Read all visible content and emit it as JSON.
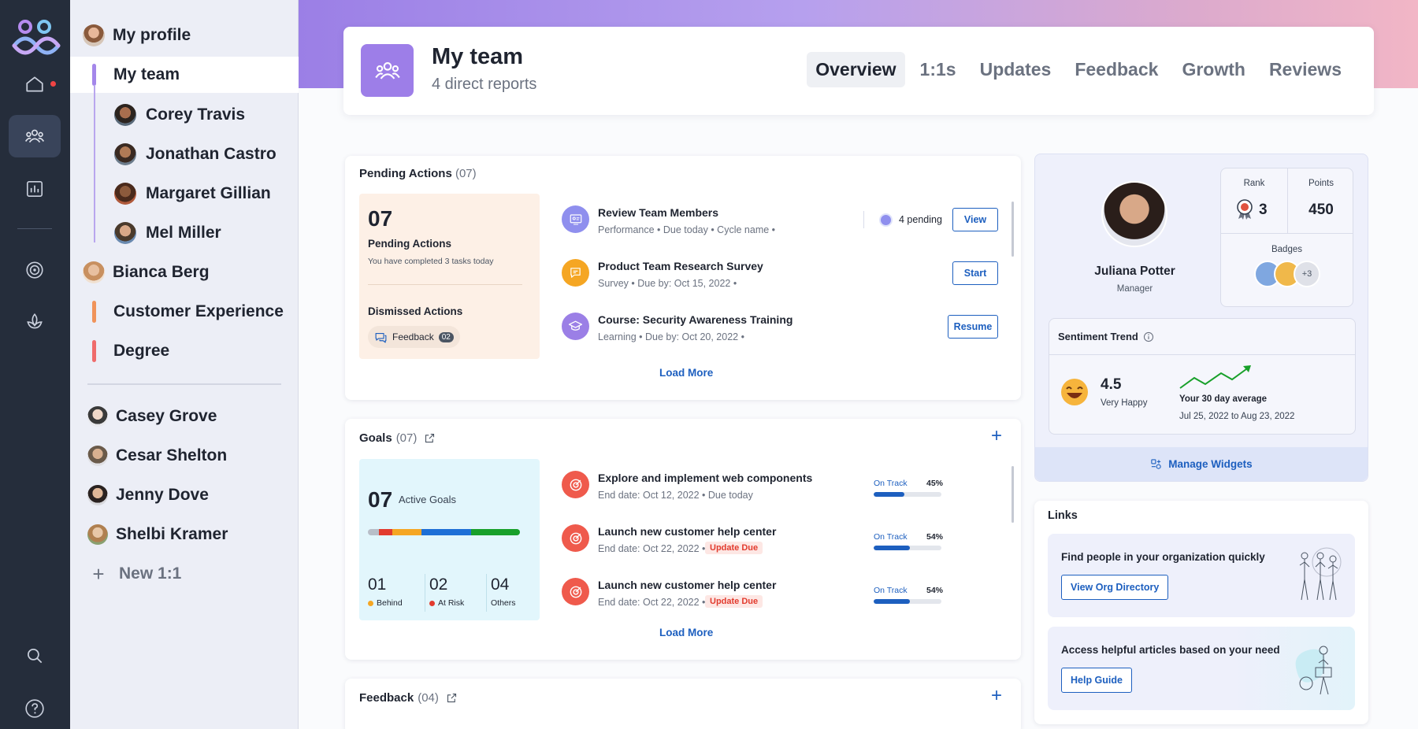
{
  "rail": {
    "icons": [
      "app-logo",
      "home-icon",
      "team-icon",
      "reports-icon",
      "goals-icon",
      "growth-icon",
      "search-icon",
      "help-icon"
    ]
  },
  "nav": {
    "my_profile": "My profile",
    "my_team": "My team",
    "reports": [
      {
        "name": "Corey Travis"
      },
      {
        "name": "Jonathan Castro"
      },
      {
        "name": "Margaret Gillian"
      },
      {
        "name": "Mel Miller"
      }
    ],
    "others": [
      {
        "name": "Bianca Berg",
        "type": "person"
      },
      {
        "name": "Customer Experience",
        "type": "team",
        "color": "#f0935a"
      },
      {
        "name": "Degree",
        "type": "team",
        "color": "#ef6b6b"
      }
    ],
    "one_on_ones": [
      {
        "name": "Casey Grove"
      },
      {
        "name": "Cesar Shelton"
      },
      {
        "name": "Jenny Dove"
      },
      {
        "name": "Shelbi Kramer"
      }
    ],
    "new_one_on_one": "New 1:1"
  },
  "header": {
    "title": "My team",
    "subtitle": "4 direct reports",
    "tabs": [
      {
        "label": "Overview",
        "active": true
      },
      {
        "label": "1:1s",
        "active": false
      },
      {
        "label": "Updates",
        "active": false
      },
      {
        "label": "Feedback",
        "active": false
      },
      {
        "label": "Growth",
        "active": false
      },
      {
        "label": "Reviews",
        "active": false
      }
    ]
  },
  "pending": {
    "title": "Pending Actions",
    "count": "(07)",
    "summary_number": "07",
    "summary_label": "Pending Actions",
    "summary_note": "You have completed 3 tasks today",
    "dismissed_label": "Dismissed Actions",
    "feedback_chip": "Feedback",
    "feedback_count": "02",
    "items": [
      {
        "title": "Review Team Members",
        "meta": "Performance  •  Due today  •  Cycle name  •",
        "pending_text": "4 pending",
        "action": "View",
        "icon_color": "#8f8fee"
      },
      {
        "title": "Product Team Research Survey",
        "meta": "Survey  •  Due by: Oct 15, 2022  •",
        "action": "Start",
        "icon_color": "#f5a623"
      },
      {
        "title": "Course: Security Awareness Training",
        "meta": "Learning  •  Due by: Oct 20, 2022     •",
        "action": "Resume",
        "icon_color": "#9b7fe6"
      }
    ],
    "load_more": "Load More"
  },
  "goals": {
    "title": "Goals",
    "count": "(07)",
    "summary_number": "07",
    "summary_label": "Active Goals",
    "breakdown": [
      {
        "value": "01",
        "label": "Behind",
        "color": "#f5a623"
      },
      {
        "value": "02",
        "label": "At Risk",
        "color": "#e23b2e"
      },
      {
        "value": "04",
        "label": "Others",
        "color": ""
      }
    ],
    "items": [
      {
        "title": "Explore and implement web components",
        "meta": "End date: Oct 12, 2022  •  Due today",
        "status": "On Track",
        "progress": 45,
        "progress_text": "45%",
        "tag": ""
      },
      {
        "title": "Launch new customer help center",
        "meta": "End date: Oct 22, 2022  •",
        "status": "On Track",
        "progress": 54,
        "progress_text": "54%",
        "tag": "Update Due"
      },
      {
        "title": "Launch new customer help center",
        "meta": "End date: Oct 22, 2022  •",
        "status": "On Track",
        "progress": 54,
        "progress_text": "54%",
        "tag": "Update Due"
      }
    ],
    "load_more": "Load More"
  },
  "feedback": {
    "title": "Feedback",
    "count": "(04)"
  },
  "profile": {
    "name": "Juliana Potter",
    "role": "Manager",
    "rank_label": "Rank",
    "rank_value": "3",
    "points_label": "Points",
    "points_value": "450",
    "badges_label": "Badges",
    "badges_more": "+3",
    "sentiment_title": "Sentiment Trend",
    "sentiment_value": "4.5",
    "sentiment_label": "Very Happy",
    "avg_label": "Your 30 day average",
    "avg_range": "Jul 25, 2022 to Aug 23, 2022",
    "manage_widgets": "Manage Widgets"
  },
  "links": {
    "title": "Links",
    "items": [
      {
        "text": "Find people in your organization quickly",
        "button": "View Org Directory"
      },
      {
        "text": "Access helpful articles based on your need",
        "button": "Help Guide"
      }
    ]
  },
  "colors": {
    "accent": "#1d5fbf",
    "brand_purple": "#9d7ee8",
    "rail_bg": "#252d3b"
  }
}
